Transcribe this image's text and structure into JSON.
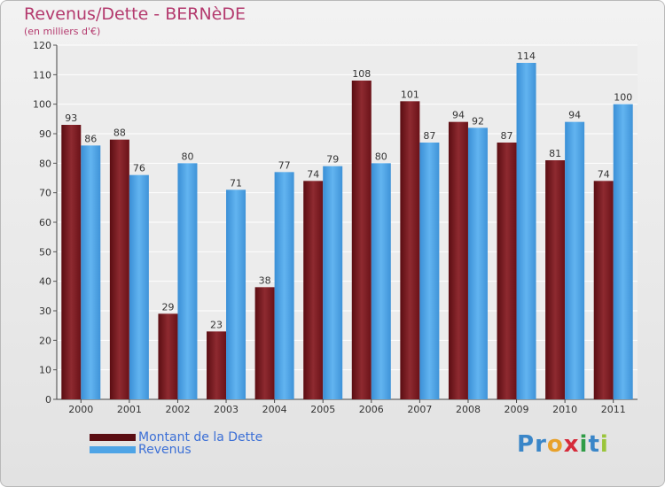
{
  "chart_data": {
    "type": "bar",
    "title": "Revenus/Dette - BERNèDE",
    "subtitle": "(en milliers d'€)",
    "categories": [
      "2000",
      "2001",
      "2002",
      "2003",
      "2004",
      "2005",
      "2006",
      "2007",
      "2008",
      "2009",
      "2010",
      "2011"
    ],
    "series": [
      {
        "name": "Montant de la Dette",
        "values": [
          93,
          88,
          29,
          23,
          38,
          74,
          108,
          101,
          94,
          87,
          81,
          74
        ],
        "color": "#7a1c22"
      },
      {
        "name": "Revenus",
        "values": [
          86,
          76,
          80,
          71,
          77,
          79,
          80,
          87,
          92,
          114,
          94,
          100
        ],
        "color": "#4ea4e6"
      }
    ],
    "ylim": [
      0,
      120
    ],
    "yticks": [
      0,
      10,
      20,
      30,
      40,
      50,
      60,
      70,
      80,
      90,
      100,
      110,
      120
    ],
    "grid": true,
    "legend_position": "bottom-left"
  },
  "brand": {
    "letters": [
      {
        "char": "P",
        "color": "#3a86c8"
      },
      {
        "char": "r",
        "color": "#3a86c8"
      },
      {
        "char": "o",
        "color": "#e8a12a"
      },
      {
        "char": "x",
        "color": "#d62b3a"
      },
      {
        "char": "i",
        "color": "#2f9c46"
      },
      {
        "char": "t",
        "color": "#3a86c8"
      },
      {
        "char": "i",
        "color": "#9ac53a"
      }
    ]
  }
}
